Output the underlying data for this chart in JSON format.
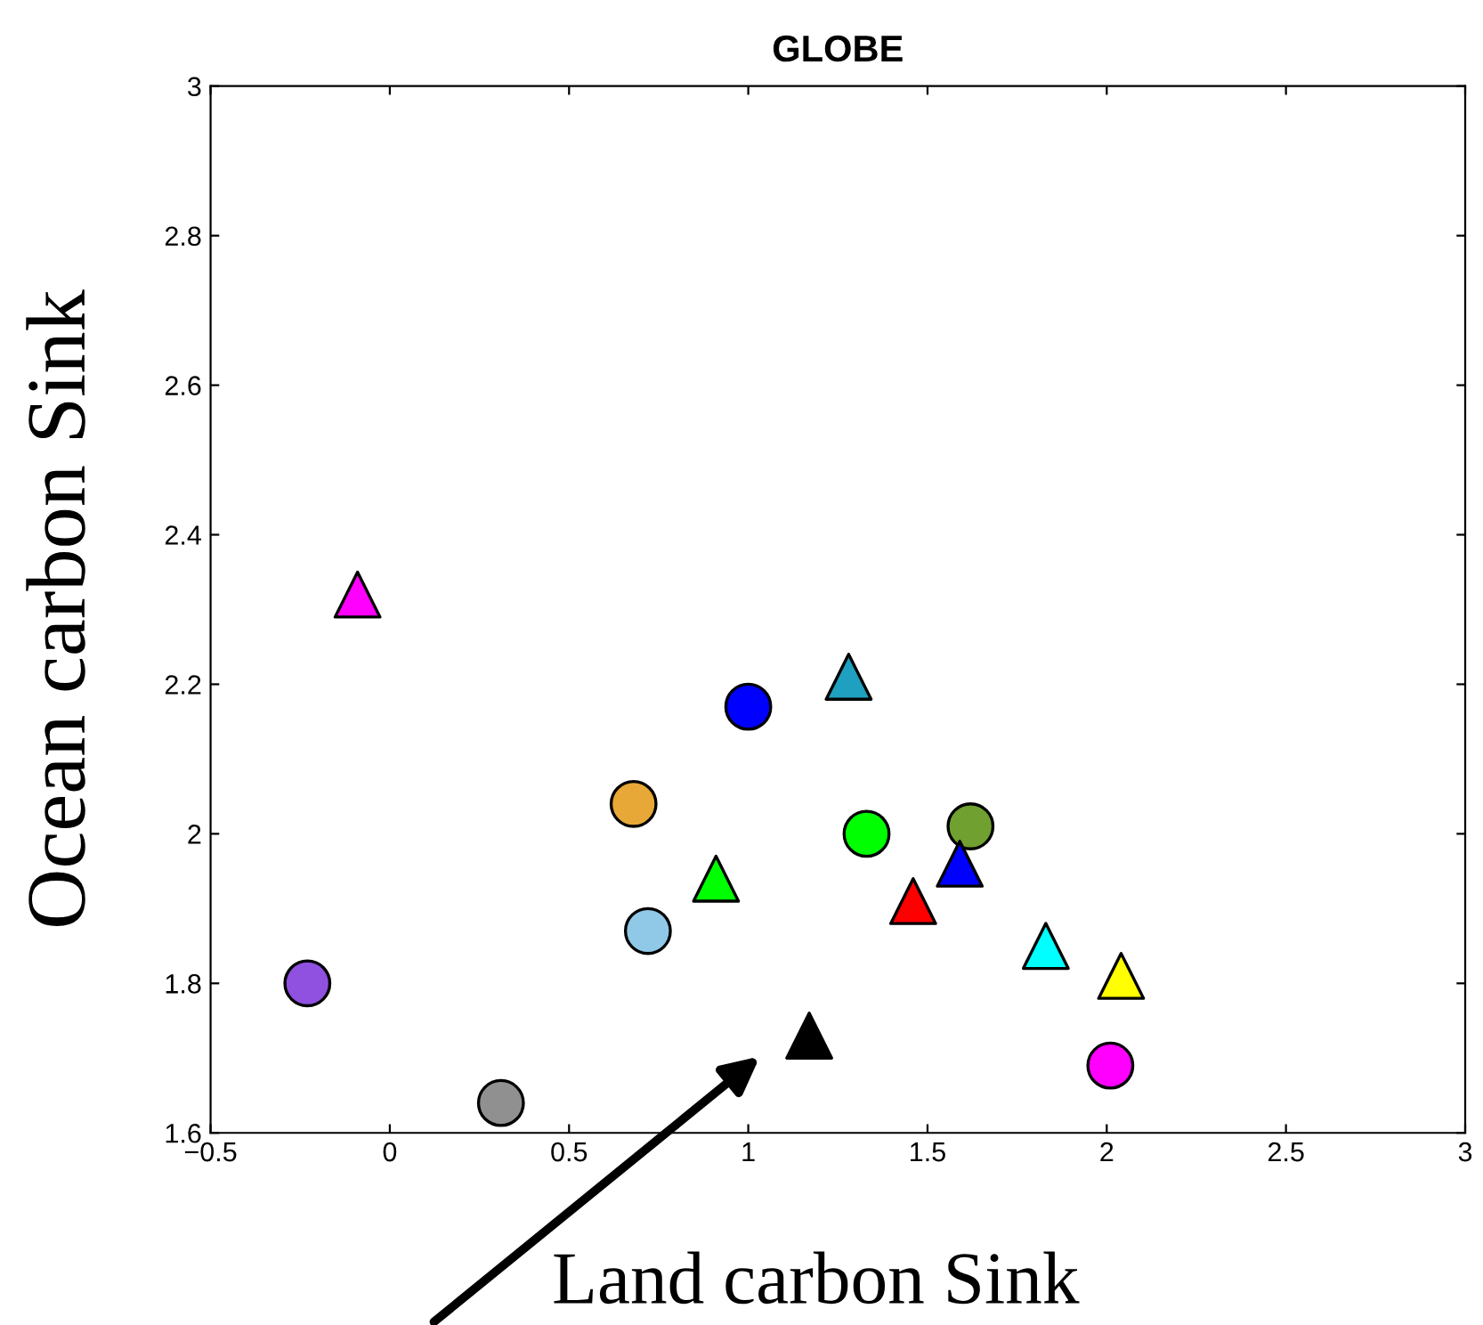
{
  "chart_data": {
    "type": "scatter",
    "title": "GLOBE",
    "xlabel": "Land carbon Sink",
    "ylabel": "Ocean carbon Sink",
    "xlim": [
      -0.5,
      3
    ],
    "ylim": [
      1.6,
      3
    ],
    "xticks": [
      {
        "value": -0.5,
        "label": "−0.5"
      },
      0,
      0.5,
      1,
      1.5,
      2,
      2.5,
      3
    ],
    "yticks": [
      1.6,
      1.8,
      2,
      2.2,
      2.4,
      2.6,
      2.8,
      3
    ],
    "grid": false,
    "legend": false,
    "series": [
      {
        "color": "#ff00ff",
        "marker": "triangle",
        "x": [
          -0.09
        ],
        "values": [
          2.32
        ]
      },
      {
        "color": "#0000ff",
        "marker": "circle",
        "x": [
          1.0
        ],
        "values": [
          2.17
        ]
      },
      {
        "color": "#1fa0c0",
        "marker": "triangle",
        "x": [
          1.28
        ],
        "values": [
          2.21
        ]
      },
      {
        "color": "#e8a838",
        "marker": "circle",
        "x": [
          0.68
        ],
        "values": [
          2.04
        ]
      },
      {
        "color": "#00ff00",
        "marker": "triangle",
        "x": [
          0.91
        ],
        "values": [
          1.94
        ]
      },
      {
        "color": "#00ff00",
        "marker": "circle",
        "x": [
          1.33
        ],
        "values": [
          2.0
        ]
      },
      {
        "color": "#70a030",
        "marker": "circle",
        "x": [
          1.62
        ],
        "values": [
          2.01
        ]
      },
      {
        "color": "#0000ff",
        "marker": "triangle",
        "x": [
          1.59
        ],
        "values": [
          1.96
        ]
      },
      {
        "color": "#ff0000",
        "marker": "triangle",
        "x": [
          1.46
        ],
        "values": [
          1.91
        ]
      },
      {
        "color": "#90c8e8",
        "marker": "circle",
        "x": [
          0.72
        ],
        "values": [
          1.87
        ]
      },
      {
        "color": "#00ffff",
        "marker": "triangle",
        "x": [
          1.83
        ],
        "values": [
          1.85
        ]
      },
      {
        "color": "#ffff00",
        "marker": "triangle",
        "x": [
          2.04
        ],
        "values": [
          1.81
        ]
      },
      {
        "color": "#ff00ff",
        "marker": "circle",
        "x": [
          2.01
        ],
        "values": [
          1.69
        ]
      },
      {
        "color": "#9050e0",
        "marker": "circle",
        "x": [
          -0.23
        ],
        "values": [
          1.8
        ]
      },
      {
        "color": "#909090",
        "marker": "circle",
        "x": [
          0.31
        ],
        "values": [
          1.64
        ]
      },
      {
        "color": "#000000",
        "marker": "triangle",
        "x": [
          1.17
        ],
        "values": [
          1.73
        ]
      }
    ]
  }
}
